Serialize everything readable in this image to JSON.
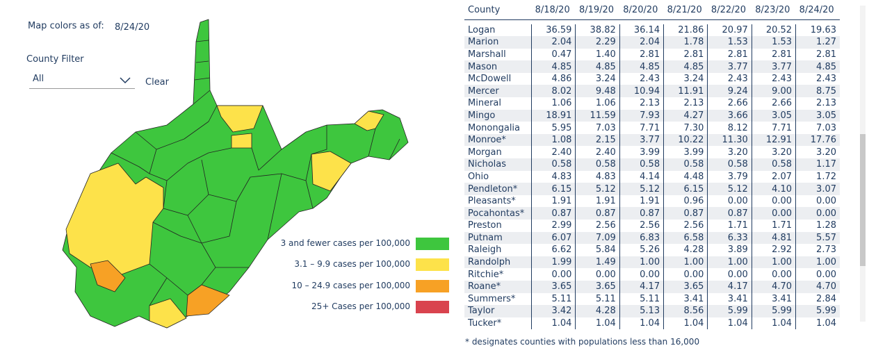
{
  "filters": {
    "map_date_label": "Map colors as of:",
    "map_date": "8/24/20",
    "county_filter_label": "County Filter",
    "county_filter_value": "All",
    "clear": "Clear"
  },
  "legend": [
    "3 and fewer cases per 100,000",
    "3.1 – 9.9 cases per 100,000",
    "10 – 24.9 cases per 100,000",
    "25+ Cases per 100,000"
  ],
  "table": {
    "columns": [
      "County",
      "8/18/20",
      "8/19/20",
      "8/20/20",
      "8/21/20",
      "8/22/20",
      "8/23/20",
      "8/24/20"
    ],
    "rows": [
      [
        "Logan",
        "36.59",
        "38.82",
        "36.14",
        "21.86",
        "20.97",
        "20.52",
        "19.63"
      ],
      [
        "Marion",
        "2.04",
        "2.29",
        "2.04",
        "1.78",
        "1.53",
        "1.53",
        "1.27"
      ],
      [
        "Marshall",
        "0.47",
        "1.40",
        "2.81",
        "2.81",
        "2.81",
        "2.81",
        "2.81"
      ],
      [
        "Mason",
        "4.85",
        "4.85",
        "4.85",
        "4.85",
        "3.77",
        "3.77",
        "4.85"
      ],
      [
        "McDowell",
        "4.86",
        "3.24",
        "2.43",
        "3.24",
        "2.43",
        "2.43",
        "2.43"
      ],
      [
        "Mercer",
        "8.02",
        "9.48",
        "10.94",
        "11.91",
        "9.24",
        "9.00",
        "8.75"
      ],
      [
        "Mineral",
        "1.06",
        "1.06",
        "2.13",
        "2.13",
        "2.66",
        "2.66",
        "2.13"
      ],
      [
        "Mingo",
        "18.91",
        "11.59",
        "7.93",
        "4.27",
        "3.66",
        "3.05",
        "3.05"
      ],
      [
        "Monongalia",
        "5.95",
        "7.03",
        "7.71",
        "7.30",
        "8.12",
        "7.71",
        "7.03"
      ],
      [
        "Monroe*",
        "1.08",
        "2.15",
        "3.77",
        "10.22",
        "11.30",
        "12.91",
        "17.76"
      ],
      [
        "Morgan",
        "2.40",
        "2.40",
        "3.99",
        "3.99",
        "3.20",
        "3.20",
        "3.20"
      ],
      [
        "Nicholas",
        "0.58",
        "0.58",
        "0.58",
        "0.58",
        "0.58",
        "0.58",
        "1.17"
      ],
      [
        "Ohio",
        "4.83",
        "4.83",
        "4.14",
        "4.48",
        "3.79",
        "2.07",
        "1.72"
      ],
      [
        "Pendleton*",
        "6.15",
        "5.12",
        "5.12",
        "6.15",
        "5.12",
        "4.10",
        "3.07"
      ],
      [
        "Pleasants*",
        "1.91",
        "1.91",
        "1.91",
        "0.96",
        "0.00",
        "0.00",
        "0.00"
      ],
      [
        "Pocahontas*",
        "0.87",
        "0.87",
        "0.87",
        "0.87",
        "0.87",
        "0.00",
        "0.00"
      ],
      [
        "Preston",
        "2.99",
        "2.56",
        "2.56",
        "2.56",
        "1.71",
        "1.71",
        "1.28"
      ],
      [
        "Putnam",
        "6.07",
        "7.09",
        "6.83",
        "6.58",
        "6.33",
        "4.81",
        "5.57"
      ],
      [
        "Raleigh",
        "6.62",
        "5.84",
        "5.26",
        "4.28",
        "3.89",
        "2.92",
        "2.73"
      ],
      [
        "Randolph",
        "1.99",
        "1.49",
        "1.00",
        "1.00",
        "1.00",
        "1.00",
        "1.00"
      ],
      [
        "Ritchie*",
        "0.00",
        "0.00",
        "0.00",
        "0.00",
        "0.00",
        "0.00",
        "0.00"
      ],
      [
        "Roane*",
        "3.65",
        "3.65",
        "4.17",
        "3.65",
        "4.17",
        "4.70",
        "4.70"
      ],
      [
        "Summers*",
        "5.11",
        "5.11",
        "5.11",
        "3.41",
        "3.41",
        "3.41",
        "2.84"
      ],
      [
        "Taylor",
        "3.42",
        "4.28",
        "5.13",
        "8.56",
        "5.99",
        "5.99",
        "5.99"
      ],
      [
        "Tucker*",
        "1.04",
        "1.04",
        "1.04",
        "1.04",
        "1.04",
        "1.04",
        "1.04"
      ]
    ]
  },
  "footnote": "* designates counties with populations less than 16,000"
}
